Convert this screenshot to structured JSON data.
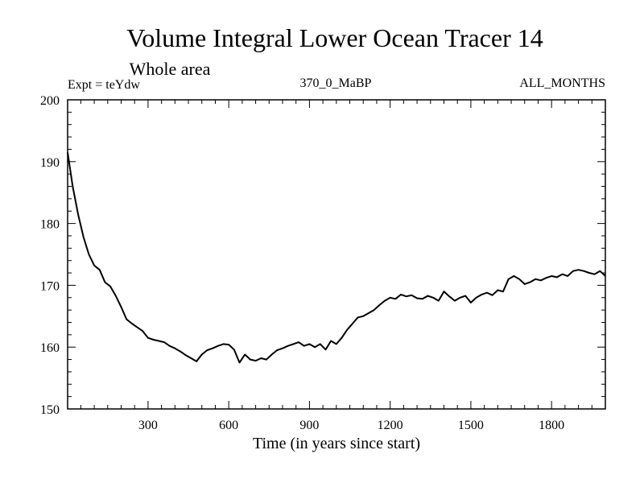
{
  "chart_data": {
    "type": "line",
    "title": "Volume Integral Lower Ocean Tracer 14",
    "subtitle": "Whole area",
    "expt_label": "Expt = teYdw",
    "run_label": "370_0_MaBP",
    "months_label": "ALL_MONTHS",
    "xlabel": "Time (in years since start)",
    "ylabel": "",
    "xlim": [
      1,
      2000
    ],
    "ylim": [
      150,
      200
    ],
    "xticks": [
      300,
      600,
      900,
      1200,
      1500,
      1800
    ],
    "yticks": [
      150,
      160,
      170,
      180,
      190,
      200
    ],
    "line_color": "#000000",
    "series": [
      {
        "name": "Tracer 14",
        "x": [
          1,
          20,
          40,
          60,
          80,
          100,
          120,
          140,
          160,
          180,
          200,
          220,
          240,
          260,
          280,
          300,
          320,
          340,
          360,
          380,
          400,
          420,
          440,
          460,
          480,
          500,
          520,
          540,
          560,
          580,
          600,
          620,
          640,
          660,
          680,
          700,
          720,
          740,
          760,
          780,
          800,
          820,
          840,
          860,
          880,
          900,
          920,
          940,
          960,
          980,
          1000,
          1020,
          1040,
          1060,
          1080,
          1100,
          1120,
          1140,
          1160,
          1180,
          1200,
          1220,
          1240,
          1260,
          1280,
          1300,
          1320,
          1340,
          1360,
          1380,
          1400,
          1420,
          1440,
          1460,
          1480,
          1500,
          1520,
          1540,
          1560,
          1580,
          1600,
          1620,
          1640,
          1660,
          1680,
          1700,
          1720,
          1740,
          1760,
          1780,
          1800,
          1820,
          1840,
          1860,
          1880,
          1900,
          1920,
          1940,
          1960,
          1980,
          2000
        ],
        "values": [
          191.5,
          186,
          181.5,
          177.8,
          175,
          173.2,
          172.5,
          170.5,
          169.8,
          168.3,
          166.5,
          164.5,
          163.8,
          163.2,
          162.6,
          161.5,
          161.2,
          161.0,
          160.8,
          160.2,
          159.8,
          159.3,
          158.7,
          158.2,
          157.7,
          158.8,
          159.5,
          159.8,
          160.2,
          160.5,
          160.4,
          159.6,
          157.5,
          158.8,
          158.0,
          157.8,
          158.2,
          158.0,
          158.8,
          159.5,
          159.8,
          160.2,
          160.5,
          160.8,
          160.2,
          160.5,
          160.0,
          160.5,
          159.6,
          161.0,
          160.5,
          161.5,
          162.8,
          163.8,
          164.8,
          165.0,
          165.5,
          166.0,
          166.8,
          167.5,
          168.0,
          167.8,
          168.5,
          168.2,
          168.4,
          167.9,
          167.8,
          168.3,
          168.0,
          167.5,
          169.0,
          168.2,
          167.5,
          168.0,
          168.3,
          167.2,
          168.0,
          168.5,
          168.8,
          168.4,
          169.2,
          169.0,
          171.0,
          171.5,
          171.0,
          170.2,
          170.5,
          171.0,
          170.8,
          171.2,
          171.5,
          171.3,
          171.8,
          171.5,
          172.3,
          172.5,
          172.3,
          172.0,
          171.8,
          172.3,
          171.5
        ]
      }
    ]
  }
}
